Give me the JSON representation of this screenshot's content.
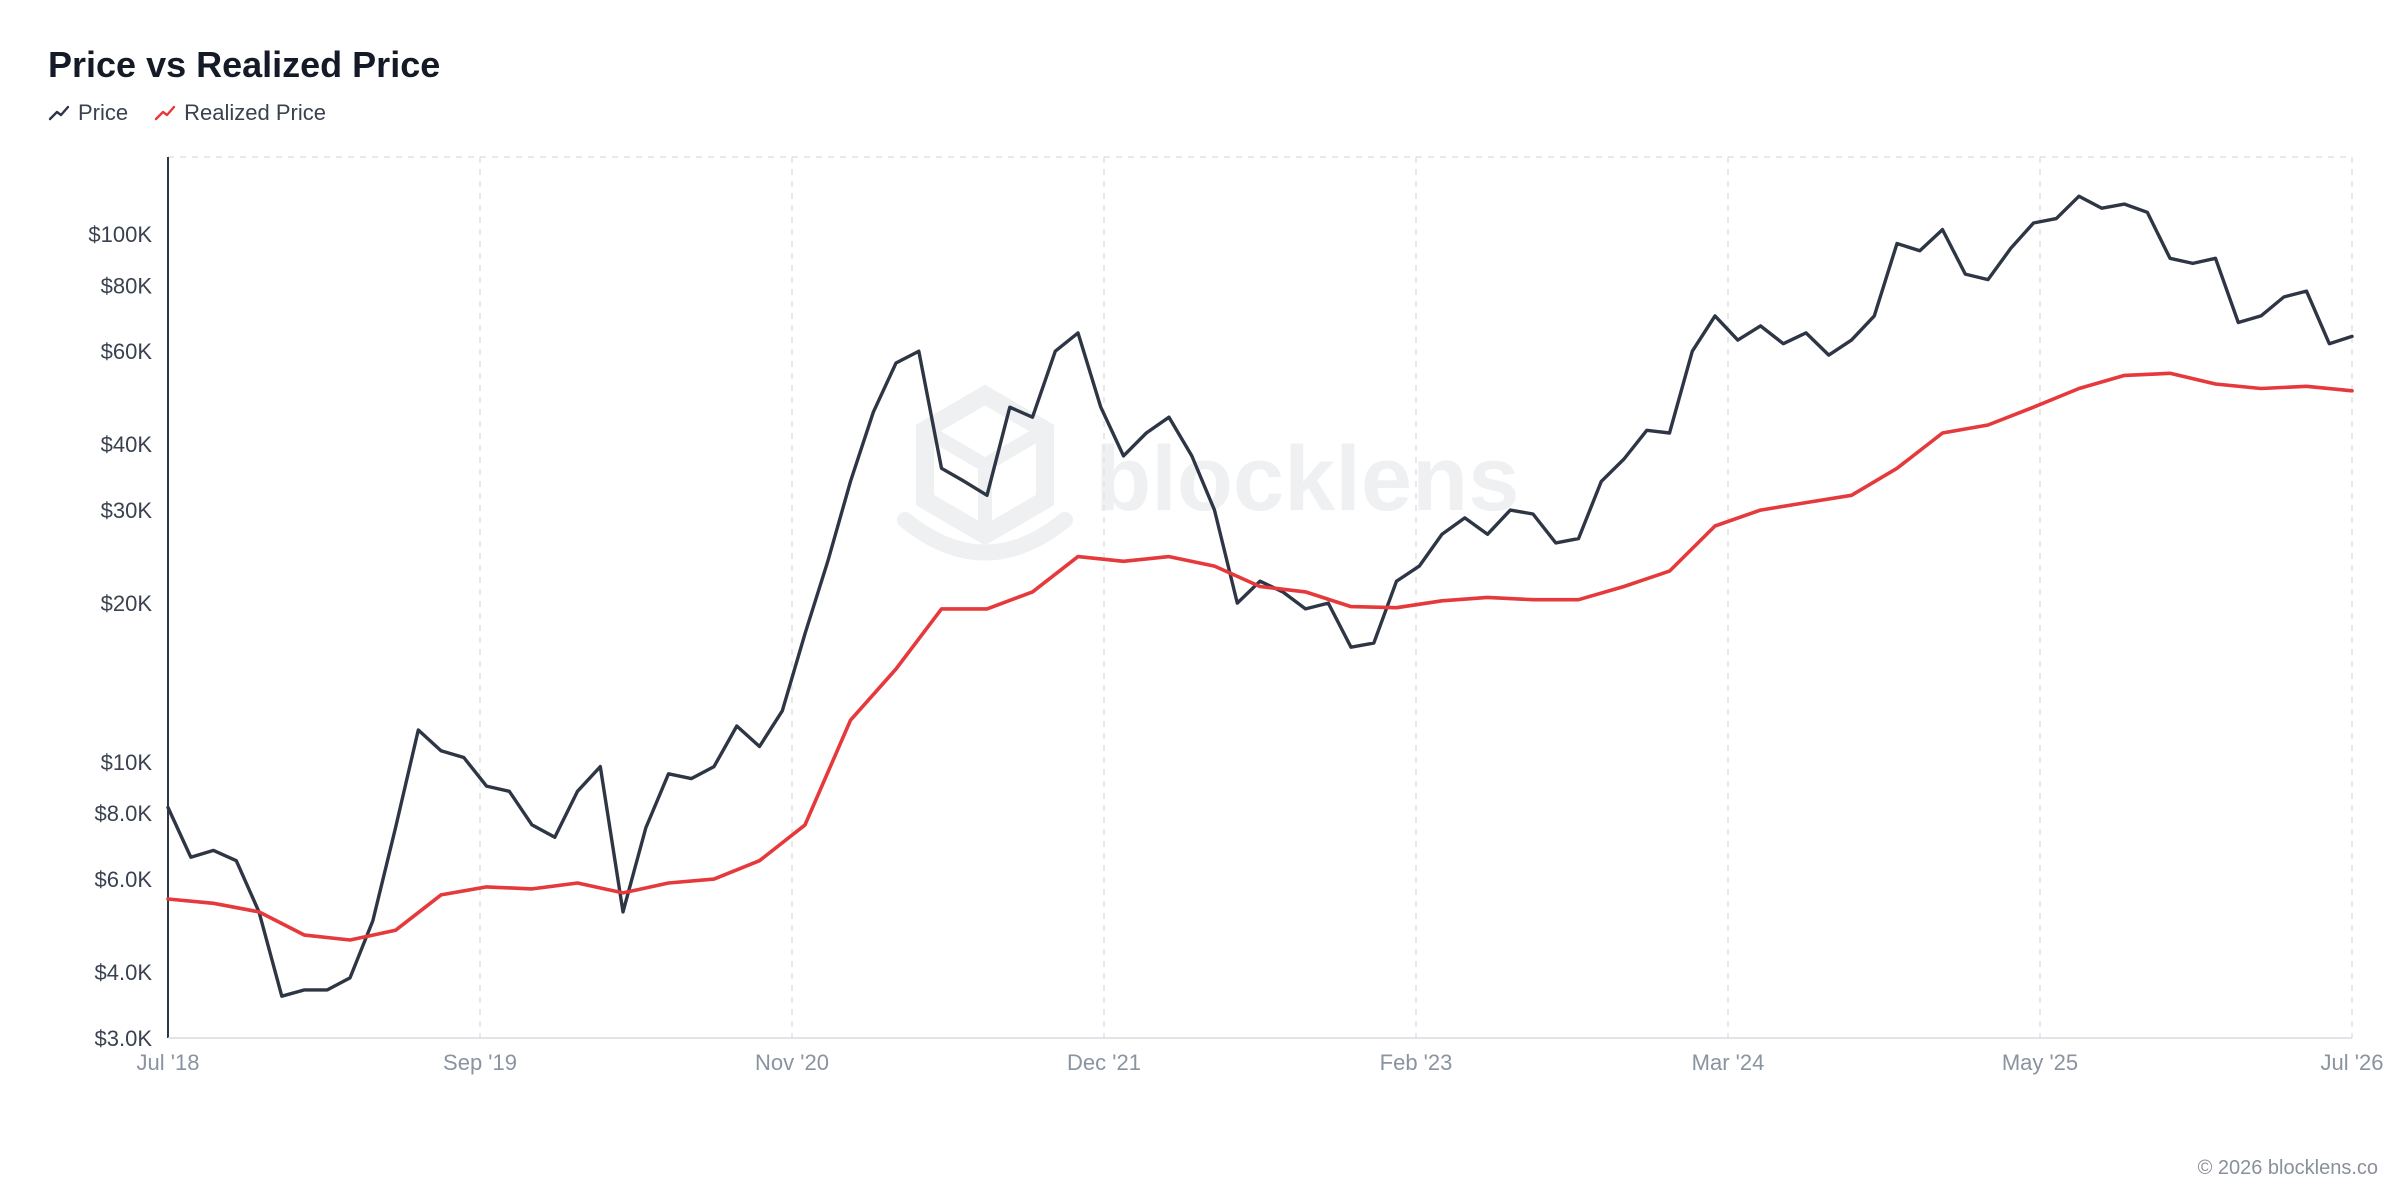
{
  "title": "Price vs Realized Price",
  "legend": {
    "items": [
      {
        "label": "Price",
        "color": "#2e3645",
        "icon": "line-chart-icon"
      },
      {
        "label": "Realized Price",
        "color": "#e5393b",
        "icon": "line-chart-icon"
      }
    ]
  },
  "watermark": "blocklens",
  "footer": "© 2026 blocklens.co",
  "chart_data": {
    "type": "line",
    "title": "Price vs Realized Price",
    "xlabel": "",
    "ylabel": "",
    "y_scale": "log",
    "ylim": [
      3000,
      140000
    ],
    "xlim": [
      "2018-07",
      "2026-07"
    ],
    "grid": "vertical dashed",
    "legend_position": "top-left",
    "x_ticks": [
      "Jul '18",
      "Sep '19",
      "Nov '20",
      "Dec '21",
      "Feb '23",
      "Mar '24",
      "May '25",
      "Jul '26"
    ],
    "y_ticks": [
      {
        "value": 3000,
        "label": "$3.0K"
      },
      {
        "value": 4000,
        "label": "$4.0K"
      },
      {
        "value": 6000,
        "label": "$6.0K"
      },
      {
        "value": 8000,
        "label": "$8.0K"
      },
      {
        "value": 10000,
        "label": "$10K"
      },
      {
        "value": 20000,
        "label": "$20K"
      },
      {
        "value": 30000,
        "label": "$30K"
      },
      {
        "value": 40000,
        "label": "$40K"
      },
      {
        "value": 60000,
        "label": "$60K"
      },
      {
        "value": 80000,
        "label": "$80K"
      },
      {
        "value": 100000,
        "label": "$100K"
      }
    ],
    "series": [
      {
        "name": "Price",
        "color": "#2e3645",
        "points": [
          [
            "2018-07",
            8200
          ],
          [
            "2018-08",
            6600
          ],
          [
            "2018-09",
            6800
          ],
          [
            "2018-10",
            6500
          ],
          [
            "2018-11",
            5200
          ],
          [
            "2018-12",
            3600
          ],
          [
            "2019-01",
            3700
          ],
          [
            "2019-02",
            3700
          ],
          [
            "2019-03",
            3900
          ],
          [
            "2019-04",
            5000
          ],
          [
            "2019-05",
            7500
          ],
          [
            "2019-06",
            11500
          ],
          [
            "2019-07",
            10500
          ],
          [
            "2019-08",
            10200
          ],
          [
            "2019-09",
            9000
          ],
          [
            "2019-10",
            8800
          ],
          [
            "2019-11",
            7600
          ],
          [
            "2019-12",
            7200
          ],
          [
            "2020-01",
            8800
          ],
          [
            "2020-02",
            9800
          ],
          [
            "2020-03",
            5200
          ],
          [
            "2020-04",
            7500
          ],
          [
            "2020-05",
            9500
          ],
          [
            "2020-06",
            9300
          ],
          [
            "2020-07",
            9800
          ],
          [
            "2020-08",
            11700
          ],
          [
            "2020-09",
            10700
          ],
          [
            "2020-10",
            12500
          ],
          [
            "2020-11",
            17500
          ],
          [
            "2020-12",
            24000
          ],
          [
            "2021-01",
            34000
          ],
          [
            "2021-02",
            46000
          ],
          [
            "2021-03",
            57000
          ],
          [
            "2021-04",
            60000
          ],
          [
            "2021-05",
            36000
          ],
          [
            "2021-06",
            34000
          ],
          [
            "2021-07",
            32000
          ],
          [
            "2021-08",
            47000
          ],
          [
            "2021-09",
            45000
          ],
          [
            "2021-10",
            60000
          ],
          [
            "2021-11",
            65000
          ],
          [
            "2021-12",
            47000
          ],
          [
            "2022-01",
            38000
          ],
          [
            "2022-02",
            42000
          ],
          [
            "2022-03",
            45000
          ],
          [
            "2022-04",
            38000
          ],
          [
            "2022-05",
            30000
          ],
          [
            "2022-06",
            20000
          ],
          [
            "2022-07",
            22000
          ],
          [
            "2022-08",
            21000
          ],
          [
            "2022-09",
            19500
          ],
          [
            "2022-10",
            20000
          ],
          [
            "2022-11",
            16500
          ],
          [
            "2022-12",
            16800
          ],
          [
            "2023-01",
            22000
          ],
          [
            "2023-02",
            23500
          ],
          [
            "2023-03",
            27000
          ],
          [
            "2023-04",
            29000
          ],
          [
            "2023-05",
            27000
          ],
          [
            "2023-06",
            30000
          ],
          [
            "2023-07",
            29500
          ],
          [
            "2023-08",
            26000
          ],
          [
            "2023-09",
            26500
          ],
          [
            "2023-10",
            34000
          ],
          [
            "2023-11",
            37500
          ],
          [
            "2023-12",
            42500
          ],
          [
            "2024-01",
            42000
          ],
          [
            "2024-02",
            60000
          ],
          [
            "2024-03",
            70000
          ],
          [
            "2024-04",
            63000
          ],
          [
            "2024-05",
            67000
          ],
          [
            "2024-06",
            62000
          ],
          [
            "2024-07",
            65000
          ],
          [
            "2024-08",
            59000
          ],
          [
            "2024-09",
            63000
          ],
          [
            "2024-10",
            70000
          ],
          [
            "2024-11",
            96000
          ],
          [
            "2024-12",
            93000
          ],
          [
            "2025-01",
            102000
          ],
          [
            "2025-02",
            84000
          ],
          [
            "2025-03",
            82000
          ],
          [
            "2025-04",
            94000
          ],
          [
            "2025-05",
            105000
          ],
          [
            "2025-06",
            107000
          ],
          [
            "2025-07",
            118000
          ],
          [
            "2025-08",
            112000
          ],
          [
            "2025-09",
            114000
          ],
          [
            "2025-10",
            110000
          ],
          [
            "2025-11",
            90000
          ],
          [
            "2025-12",
            88000
          ],
          [
            "2026-01",
            90000
          ],
          [
            "2026-02",
            68000
          ],
          [
            "2026-03",
            70000
          ],
          [
            "2026-04",
            76000
          ],
          [
            "2026-05",
            78000
          ],
          [
            "2026-06",
            62000
          ],
          [
            "2026-07",
            64000
          ]
        ]
      },
      {
        "name": "Realized Price",
        "color": "#e5393b",
        "points": [
          [
            "2018-07",
            5500
          ],
          [
            "2018-09",
            5400
          ],
          [
            "2018-11",
            5200
          ],
          [
            "2019-01",
            4700
          ],
          [
            "2019-03",
            4600
          ],
          [
            "2019-05",
            4800
          ],
          [
            "2019-07",
            5600
          ],
          [
            "2019-09",
            5800
          ],
          [
            "2019-11",
            5750
          ],
          [
            "2020-01",
            5900
          ],
          [
            "2020-03",
            5650
          ],
          [
            "2020-05",
            5900
          ],
          [
            "2020-07",
            6000
          ],
          [
            "2020-09",
            6500
          ],
          [
            "2020-11",
            7600
          ],
          [
            "2021-01",
            12000
          ],
          [
            "2021-03",
            15000
          ],
          [
            "2021-05",
            19500
          ],
          [
            "2021-07",
            19500
          ],
          [
            "2021-09",
            21000
          ],
          [
            "2021-11",
            24500
          ],
          [
            "2022-01",
            24000
          ],
          [
            "2022-03",
            24500
          ],
          [
            "2022-05",
            23500
          ],
          [
            "2022-07",
            21500
          ],
          [
            "2022-09",
            21000
          ],
          [
            "2022-11",
            19700
          ],
          [
            "2023-01",
            19600
          ],
          [
            "2023-03",
            20200
          ],
          [
            "2023-05",
            20500
          ],
          [
            "2023-07",
            20300
          ],
          [
            "2023-09",
            20300
          ],
          [
            "2023-11",
            21500
          ],
          [
            "2024-01",
            23000
          ],
          [
            "2024-03",
            28000
          ],
          [
            "2024-05",
            30000
          ],
          [
            "2024-07",
            31000
          ],
          [
            "2024-09",
            32000
          ],
          [
            "2024-11",
            36000
          ],
          [
            "2025-01",
            42000
          ],
          [
            "2025-03",
            43500
          ],
          [
            "2025-05",
            47000
          ],
          [
            "2025-07",
            51000
          ],
          [
            "2025-09",
            54000
          ],
          [
            "2025-11",
            54500
          ],
          [
            "2026-01",
            52000
          ],
          [
            "2026-03",
            51000
          ],
          [
            "2026-05",
            51500
          ],
          [
            "2026-07",
            50500
          ]
        ]
      }
    ]
  }
}
